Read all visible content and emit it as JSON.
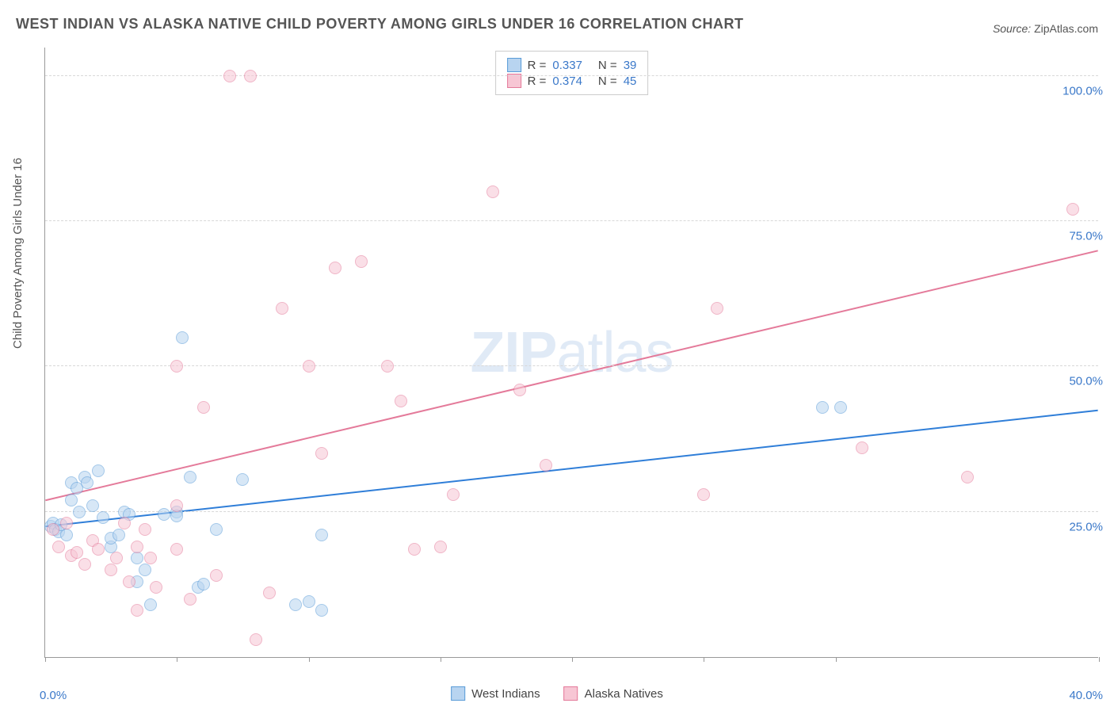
{
  "title": "WEST INDIAN VS ALASKA NATIVE CHILD POVERTY AMONG GIRLS UNDER 16 CORRELATION CHART",
  "source_prefix": "Source: ",
  "source_name": "ZipAtlas.com",
  "y_axis_label": "Child Poverty Among Girls Under 16",
  "watermark": {
    "bold": "ZIP",
    "light": "atlas"
  },
  "chart": {
    "type": "scatter",
    "xlim": [
      0,
      40
    ],
    "ylim": [
      0,
      105
    ],
    "x_ticks": [
      0,
      5,
      10,
      15,
      20,
      25,
      30,
      40
    ],
    "x_min_label": "0.0%",
    "x_max_label": "40.0%",
    "y_gridlines": [
      25,
      50,
      75,
      100
    ],
    "y_tick_labels": [
      "25.0%",
      "50.0%",
      "75.0%",
      "100.0%"
    ],
    "background_color": "#ffffff",
    "grid_color": "#d8d8d8",
    "axis_color": "#999999",
    "tick_label_color": "#3a78c9",
    "marker_radius": 8,
    "marker_stroke_width": 1,
    "trend_line_width": 2,
    "series": [
      {
        "name": "West Indians",
        "legend_label": "West Indians",
        "R": "0.337",
        "N": "39",
        "fill": "#b8d4f0",
        "stroke": "#5a9cd8",
        "fill_opacity": 0.55,
        "trend_color": "#2f7ed8",
        "trend": {
          "x1": 0,
          "y1": 22.5,
          "x2": 40,
          "y2": 42.5
        },
        "points": [
          [
            0.2,
            22.5
          ],
          [
            0.3,
            23
          ],
          [
            0.4,
            22
          ],
          [
            0.5,
            21.5
          ],
          [
            0.6,
            22.8
          ],
          [
            0.8,
            21
          ],
          [
            1.0,
            30
          ],
          [
            1.0,
            27
          ],
          [
            1.2,
            29
          ],
          [
            1.3,
            25
          ],
          [
            1.5,
            31
          ],
          [
            1.6,
            30
          ],
          [
            1.8,
            26
          ],
          [
            2.0,
            32
          ],
          [
            2.2,
            24
          ],
          [
            2.5,
            19
          ],
          [
            2.5,
            20.5
          ],
          [
            2.8,
            21
          ],
          [
            3.0,
            25
          ],
          [
            3.2,
            24.5
          ],
          [
            3.5,
            17
          ],
          [
            3.5,
            13
          ],
          [
            3.8,
            15
          ],
          [
            4.0,
            9
          ],
          [
            4.5,
            24.5
          ],
          [
            5.0,
            25
          ],
          [
            5.0,
            24.3
          ],
          [
            5.2,
            55
          ],
          [
            5.5,
            31
          ],
          [
            5.8,
            12
          ],
          [
            6.0,
            12.5
          ],
          [
            6.5,
            22
          ],
          [
            7.5,
            30.5
          ],
          [
            9.5,
            9
          ],
          [
            10,
            9.5
          ],
          [
            10.5,
            21
          ],
          [
            10.5,
            8
          ],
          [
            29.5,
            43
          ],
          [
            30.2,
            43
          ]
        ]
      },
      {
        "name": "Alaska Natives",
        "legend_label": "Alaska Natives",
        "R": "0.374",
        "N": "45",
        "fill": "#f7c6d4",
        "stroke": "#e47a9a",
        "fill_opacity": 0.55,
        "trend_color": "#e47a9a",
        "trend": {
          "x1": 0,
          "y1": 27,
          "x2": 40,
          "y2": 70
        },
        "points": [
          [
            0.3,
            22
          ],
          [
            0.5,
            19
          ],
          [
            0.8,
            23
          ],
          [
            1.0,
            17.5
          ],
          [
            1.2,
            18
          ],
          [
            1.5,
            16
          ],
          [
            1.8,
            20
          ],
          [
            2.0,
            18.5
          ],
          [
            2.5,
            15
          ],
          [
            2.7,
            17
          ],
          [
            3.0,
            23
          ],
          [
            3.2,
            13
          ],
          [
            3.5,
            19
          ],
          [
            3.5,
            8
          ],
          [
            3.8,
            22
          ],
          [
            4.0,
            17
          ],
          [
            4.2,
            12
          ],
          [
            5.0,
            18.5
          ],
          [
            5.0,
            26
          ],
          [
            5.0,
            50
          ],
          [
            5.5,
            10
          ],
          [
            6.0,
            43
          ],
          [
            6.5,
            14
          ],
          [
            7.0,
            100
          ],
          [
            7.8,
            100
          ],
          [
            8.0,
            3
          ],
          [
            8.5,
            11
          ],
          [
            9.0,
            60
          ],
          [
            10,
            50
          ],
          [
            10.5,
            35
          ],
          [
            11,
            67
          ],
          [
            12,
            68
          ],
          [
            13,
            50
          ],
          [
            13.5,
            44
          ],
          [
            14,
            18.5
          ],
          [
            15,
            19
          ],
          [
            15.5,
            28
          ],
          [
            17,
            80
          ],
          [
            18,
            46
          ],
          [
            19,
            33
          ],
          [
            25,
            28
          ],
          [
            25.5,
            60
          ],
          [
            31,
            36
          ],
          [
            35,
            31
          ],
          [
            39,
            77
          ]
        ]
      }
    ]
  },
  "stats_legend": {
    "r_label": "R =",
    "n_label": "N ="
  }
}
